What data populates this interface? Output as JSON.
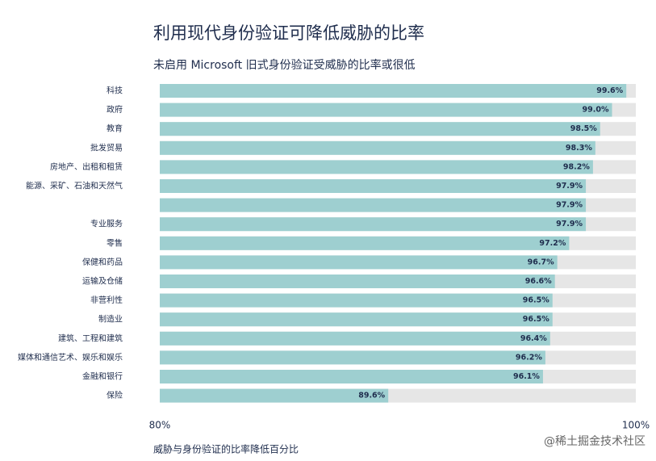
{
  "chart_data": {
    "type": "hbar",
    "title": "利用现代身份验证可降低威胁的比率",
    "subtitle": "未启用 Microsoft 旧式身份验证受威胁的比率或很低",
    "x_label": "威胁与身份验证的比率降低百分比",
    "watermark": "@稀土掘金技术社区",
    "categories": [
      "科技",
      "政府",
      "教育",
      "批发贸易",
      "房地产、出租和租赁",
      "能源、采矿、石油和天然气",
      null,
      "专业服务",
      "零售",
      "保健和药品",
      "运输及仓储",
      "非营利性",
      "制造业",
      "建筑、工程和建筑",
      "媒体和通信艺术、娱乐和娱乐",
      "金融和银行",
      "保险"
    ],
    "values": [
      99.6,
      99.0,
      98.5,
      98.3,
      98.2,
      97.9,
      97.9,
      97.9,
      97.2,
      96.7,
      96.6,
      96.5,
      96.5,
      96.4,
      96.2,
      96.1,
      89.6
    ],
    "value_labels": [
      "99.6%",
      "99.0%",
      "98.5%",
      "98.3%",
      "98.2%",
      "97.9%",
      "97.9%",
      "97.9%",
      "97.2%",
      "96.7%",
      "96.6%",
      "96.5%",
      "96.5%",
      "96.4%",
      "96.2%",
      "96.1%",
      "89.6%"
    ],
    "color": "#9ecfd0",
    "track_color": "#e6e6e6",
    "xlim": [
      80,
      100
    ],
    "xticks": [
      {
        "value": 80,
        "label": "80%"
      },
      {
        "value": 100,
        "label": "100%"
      }
    ]
  }
}
